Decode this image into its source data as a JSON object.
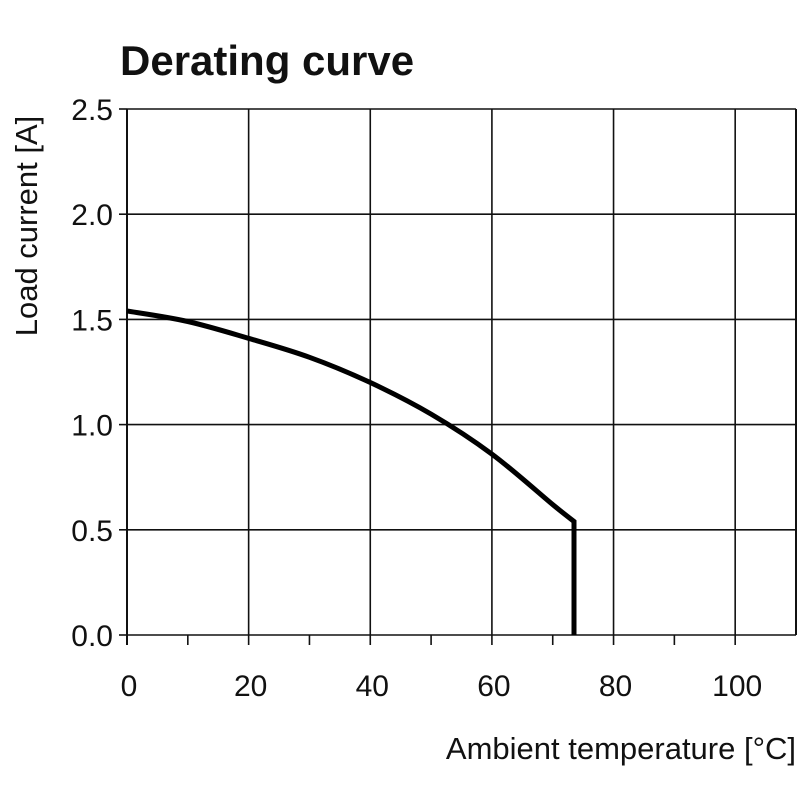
{
  "chart_data": {
    "type": "line",
    "title": "Derating curve",
    "xlabel": "Ambient temperature [°C]",
    "ylabel": "Load current [A]",
    "xlim": [
      0,
      110
    ],
    "ylim": [
      0,
      2.5
    ],
    "x_ticks": [
      0,
      20,
      40,
      60,
      80,
      100
    ],
    "x_tick_labels": [
      "0",
      "20",
      "40",
      "60",
      "80",
      "100"
    ],
    "x_minor_ticks": [
      10,
      30,
      50,
      70,
      90
    ],
    "y_ticks": [
      0,
      0.5,
      1.0,
      1.5,
      2.0,
      2.5
    ],
    "y_tick_labels": [
      "0.0",
      "0.5",
      "1.0",
      "1.5",
      "2.0",
      "2.5"
    ],
    "grid": true,
    "series": [
      {
        "name": "Derating curve",
        "x": [
          0,
          10,
          20,
          30,
          40,
          50,
          60,
          70,
          73.5,
          73.5
        ],
        "y": [
          1.54,
          1.49,
          1.41,
          1.32,
          1.2,
          1.05,
          0.86,
          0.62,
          0.54,
          0.0
        ]
      }
    ]
  }
}
